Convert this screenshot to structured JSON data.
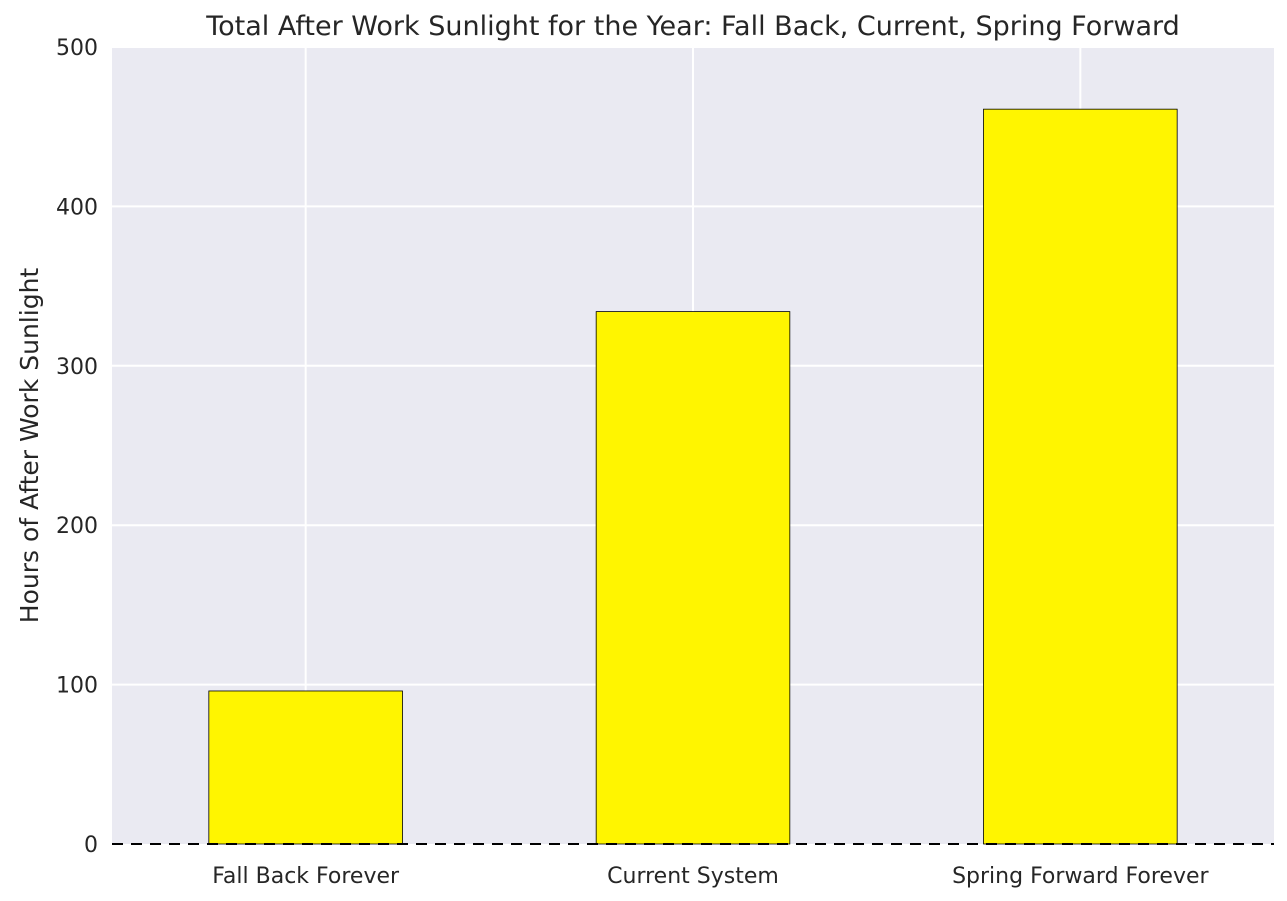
{
  "chart_data": {
    "type": "bar",
    "title": "Total After Work Sunlight for the Year: Fall Back, Current, Spring Forward",
    "xlabel": "",
    "ylabel": "Hours of After Work Sunlight",
    "categories": [
      "Fall Back Forever",
      "Current System",
      "Spring Forward Forever"
    ],
    "values": [
      96,
      334,
      461
    ],
    "ylim": [
      0,
      500
    ],
    "yticks": [
      0,
      100,
      200,
      300,
      400,
      500
    ],
    "grid": true,
    "reference_line": {
      "y": 0,
      "style": "dashed"
    },
    "colors": {
      "bar_fill": "#fff500",
      "bar_edge": "#000000",
      "plot_background": "#eaeaf2",
      "grid": "#ffffff",
      "text": "#262626"
    }
  }
}
